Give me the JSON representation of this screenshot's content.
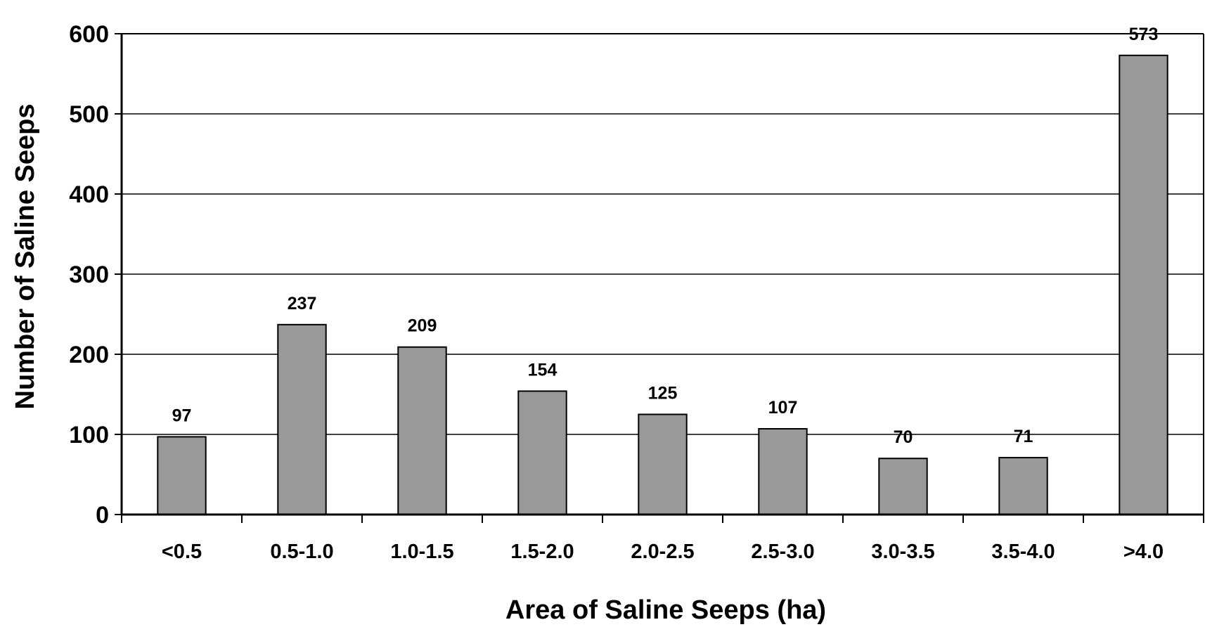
{
  "chart_data": {
    "type": "bar",
    "title": "",
    "xlabel": "Area of Saline Seeps (ha)",
    "ylabel": "Number of Saline Seeps",
    "categories": [
      "<0.5",
      "0.5-1.0",
      "1.0-1.5",
      "1.5-2.0",
      "2.0-2.5",
      "2.5-3.0",
      "3.0-3.5",
      "3.5-4.0",
      ">4.0"
    ],
    "values": [
      97,
      237,
      209,
      154,
      125,
      107,
      70,
      71,
      573
    ],
    "data_labels": [
      "97",
      "237",
      "209",
      "154",
      "125",
      "107",
      "70",
      "71",
      "573"
    ],
    "ylim": [
      0,
      600
    ],
    "yticks": [
      0,
      100,
      200,
      300,
      400,
      500,
      600
    ],
    "ytick_labels": [
      "0",
      "100",
      "200",
      "300",
      "400",
      "500",
      "600"
    ],
    "grid": true,
    "legend": "none",
    "colors": {
      "bar_fill": "#999999",
      "bar_stroke": "#000000",
      "grid": "#000000",
      "axis": "#000000"
    }
  }
}
